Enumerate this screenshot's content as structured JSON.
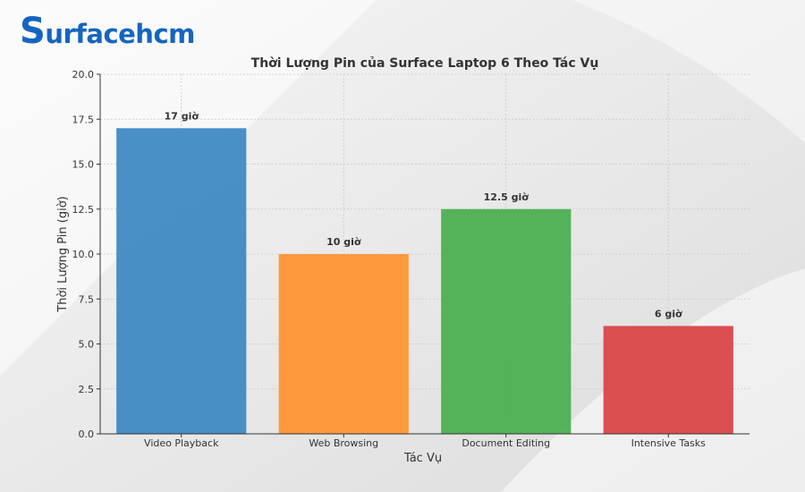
{
  "brand": {
    "logo_initial": "S",
    "logo_rest": "urfacehcm",
    "color": "#1565c0"
  },
  "chart_data": {
    "type": "bar",
    "title": "Thời Lượng Pin của Surface Laptop 6 Theo Tác Vụ",
    "xlabel": "Tác Vụ",
    "ylabel": "Thời Lượng Pin (giờ)",
    "categories": [
      "Video Playback",
      "Web Browsing",
      "Document Editing",
      "Intensive Tasks"
    ],
    "values": [
      17,
      10,
      12.5,
      6
    ],
    "data_labels": [
      "17 giờ",
      "10 giờ",
      "12.5 giờ",
      "6 giờ"
    ],
    "colors": [
      "#3f8ac4",
      "#ff9535",
      "#4caf50",
      "#d94648"
    ],
    "ylim": [
      0,
      20
    ],
    "yticks": [
      "0.0",
      "2.5",
      "5.0",
      "7.5",
      "10.0",
      "12.5",
      "15.0",
      "17.5",
      "20.0"
    ],
    "grid": true
  }
}
